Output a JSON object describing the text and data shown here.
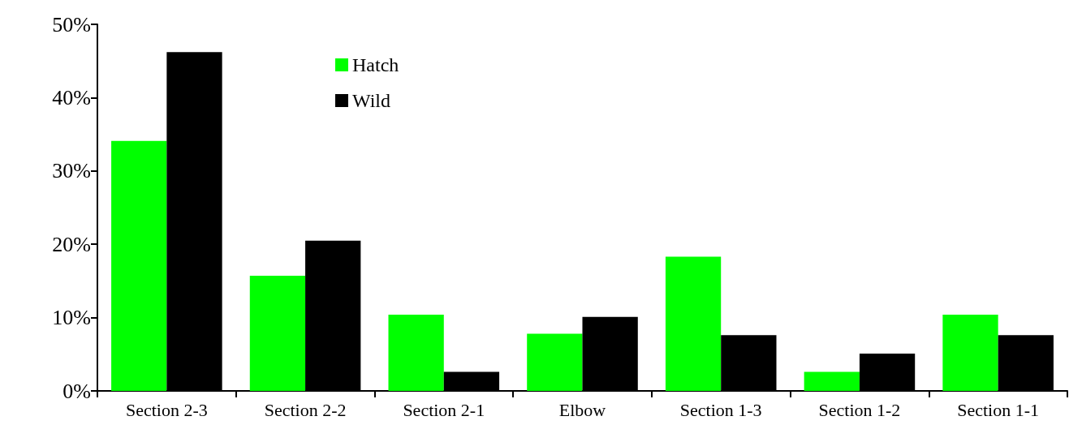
{
  "chart_data": {
    "type": "bar",
    "categories": [
      "Section 2-3",
      "Section 2-2",
      "Section 2-1",
      "Elbow",
      "Section 1-3",
      "Section 1-2",
      "Section 1-1"
    ],
    "series": [
      {
        "name": "Hatch",
        "color": "#00ff00",
        "values": [
          34.1,
          15.7,
          10.4,
          7.8,
          18.3,
          2.6,
          10.4
        ]
      },
      {
        "name": "Wild",
        "color": "#000000",
        "values": [
          46.2,
          20.5,
          2.6,
          10.1,
          7.6,
          5.1,
          7.6
        ]
      }
    ],
    "ylim": [
      0,
      50
    ],
    "yticks": [
      {
        "value": 0,
        "label": "0%"
      },
      {
        "value": 10,
        "label": "10%"
      },
      {
        "value": 20,
        "label": "20%"
      },
      {
        "value": 30,
        "label": "30%"
      },
      {
        "value": 40,
        "label": "40%"
      },
      {
        "value": 50,
        "label": "50%"
      }
    ],
    "grid": false,
    "legend": "top"
  }
}
